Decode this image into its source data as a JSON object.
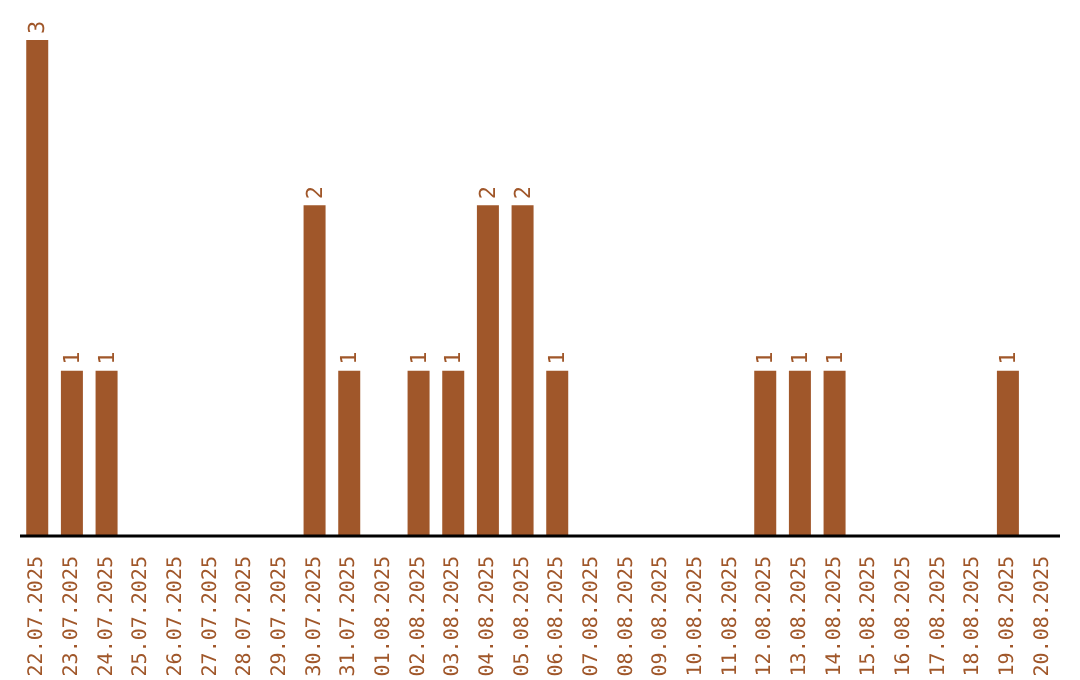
{
  "chart_data": {
    "type": "bar",
    "categories": [
      "22.07.2025",
      "23.07.2025",
      "24.07.2025",
      "25.07.2025",
      "26.07.2025",
      "27.07.2025",
      "28.07.2025",
      "29.07.2025",
      "30.07.2025",
      "31.07.2025",
      "01.08.2025",
      "02.08.2025",
      "03.08.2025",
      "04.08.2025",
      "05.08.2025",
      "06.08.2025",
      "07.08.2025",
      "08.08.2025",
      "09.08.2025",
      "10.08.2025",
      "11.08.2025",
      "12.08.2025",
      "13.08.2025",
      "14.08.2025",
      "15.08.2025",
      "16.08.2025",
      "17.08.2025",
      "18.08.2025",
      "19.08.2025",
      "20.08.2025"
    ],
    "values": [
      3,
      1,
      1,
      0,
      0,
      0,
      0,
      0,
      2,
      1,
      0,
      1,
      1,
      2,
      2,
      1,
      0,
      0,
      0,
      0,
      0,
      1,
      1,
      1,
      0,
      0,
      0,
      0,
      1,
      0
    ],
    "value_labels": [
      "3",
      "1",
      "1",
      null,
      null,
      null,
      null,
      null,
      "2",
      "1",
      null,
      "1",
      "1",
      "2",
      "2",
      "1",
      null,
      null,
      null,
      null,
      null,
      "1",
      "1",
      "1",
      null,
      null,
      null,
      null,
      "1",
      null
    ],
    "color": "#a0572a",
    "ylim": [
      0,
      3
    ],
    "tick_labels": "x",
    "grid": false,
    "legend": false
  }
}
